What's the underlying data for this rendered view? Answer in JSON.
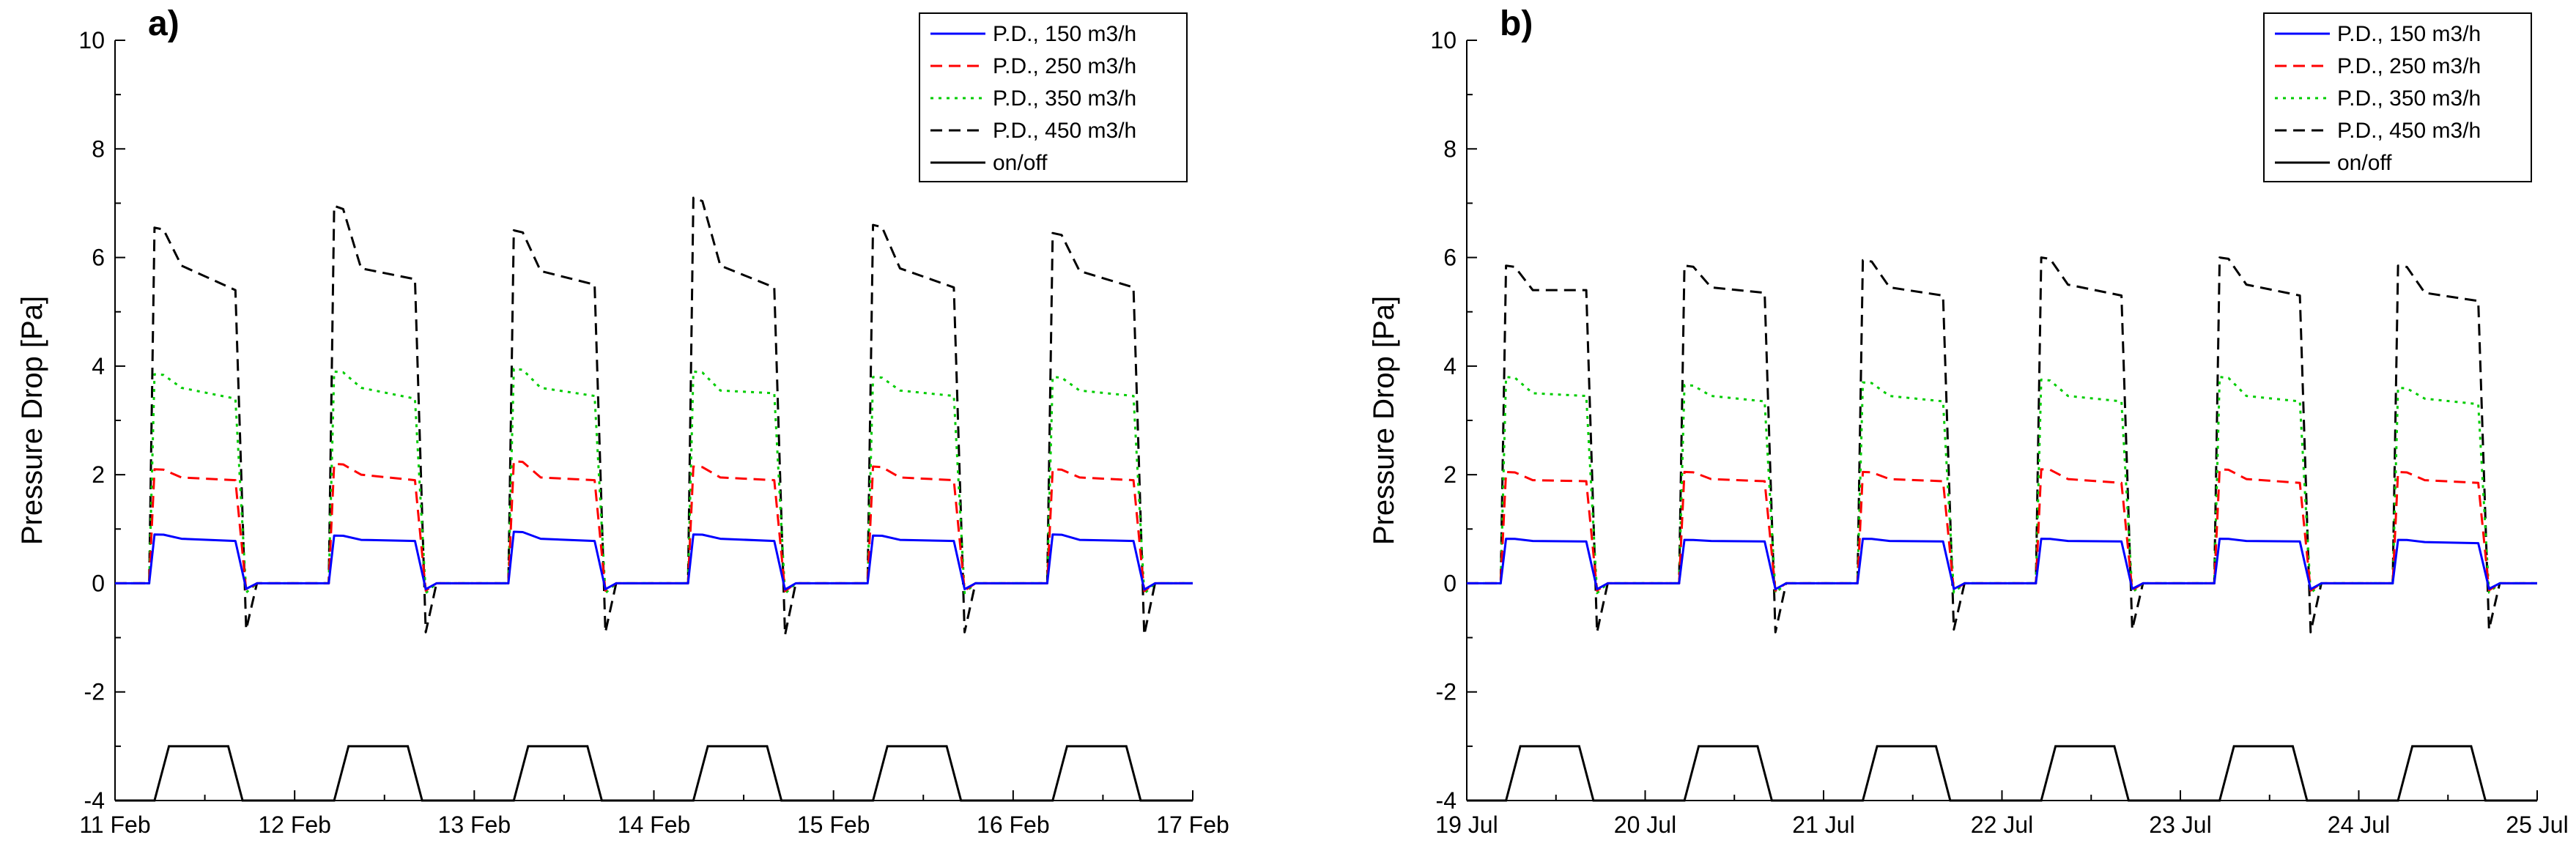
{
  "figure": {
    "panels": [
      {
        "letter": "a)",
        "ylabel": "Pressure Drop [Pa]"
      },
      {
        "letter": "b)",
        "ylabel": "Pressure Drop [Pa]"
      }
    ],
    "legend": [
      {
        "label": "P.D., 150 m3/h",
        "color": "#0000ff",
        "style": "solid"
      },
      {
        "label": "P.D., 250 m3/h",
        "color": "#ff0000",
        "style": "dashed"
      },
      {
        "label": "P.D., 350 m3/h",
        "color": "#00cc00",
        "style": "dotted"
      },
      {
        "label": "P.D., 450 m3/h",
        "color": "#000000",
        "style": "dashed"
      },
      {
        "label": "on/off",
        "color": "#000000",
        "style": "solid"
      }
    ]
  },
  "chart_data": [
    {
      "type": "line",
      "title": "a)",
      "xlabel": "",
      "ylabel": "Pressure Drop [Pa]",
      "ylim": [
        -4,
        10
      ],
      "yticks": [
        -4,
        -2,
        0,
        2,
        4,
        6,
        8,
        10
      ],
      "xlim": [
        0,
        6
      ],
      "xtick_labels": [
        "11 Feb",
        "12 Feb",
        "13 Feb",
        "14 Feb",
        "15 Feb",
        "16 Feb",
        "17 Feb"
      ],
      "legend_position": "top-right",
      "on_level": -3,
      "off_level": -4,
      "cycles": [
        {
          "day": 0,
          "on_start": 0.22,
          "on_end": 0.71,
          "p150": [
            0.9,
            0.82,
            0.78
          ],
          "p250": [
            2.1,
            1.95,
            1.9
          ],
          "p350": [
            3.85,
            3.6,
            3.4
          ],
          "p450": [
            6.55,
            5.85,
            5.4
          ],
          "undershoot": -0.85
        },
        {
          "day": 1,
          "on_start": 0.22,
          "on_end": 0.71,
          "p150": [
            0.88,
            0.8,
            0.78
          ],
          "p250": [
            2.2,
            2.0,
            1.9
          ],
          "p350": [
            3.9,
            3.6,
            3.4
          ],
          "p450": [
            6.95,
            5.8,
            5.6
          ],
          "undershoot": -0.9
        },
        {
          "day": 2,
          "on_start": 0.22,
          "on_end": 0.71,
          "p150": [
            0.95,
            0.82,
            0.78
          ],
          "p250": [
            2.25,
            1.95,
            1.9
          ],
          "p350": [
            3.95,
            3.6,
            3.45
          ],
          "p450": [
            6.5,
            5.75,
            5.5
          ],
          "undershoot": -0.9
        },
        {
          "day": 3,
          "on_start": 0.22,
          "on_end": 0.71,
          "p150": [
            0.9,
            0.82,
            0.78
          ],
          "p250": [
            2.15,
            1.95,
            1.9
          ],
          "p350": [
            3.9,
            3.55,
            3.5
          ],
          "p450": [
            7.1,
            5.85,
            5.45
          ],
          "undershoot": -0.95
        },
        {
          "day": 4,
          "on_start": 0.22,
          "on_end": 0.71,
          "p150": [
            0.88,
            0.8,
            0.78
          ],
          "p250": [
            2.15,
            1.95,
            1.9
          ],
          "p350": [
            3.8,
            3.55,
            3.45
          ],
          "p450": [
            6.6,
            5.8,
            5.45
          ],
          "undershoot": -0.9
        },
        {
          "day": 5,
          "on_start": 0.22,
          "on_end": 0.71,
          "p150": [
            0.9,
            0.8,
            0.78
          ],
          "p250": [
            2.1,
            1.95,
            1.9
          ],
          "p350": [
            3.8,
            3.55,
            3.45
          ],
          "p450": [
            6.45,
            5.75,
            5.45
          ],
          "undershoot": -0.95
        }
      ]
    },
    {
      "type": "line",
      "title": "b)",
      "xlabel": "",
      "ylabel": "Pressure Drop [Pa]",
      "ylim": [
        -4,
        10
      ],
      "yticks": [
        -4,
        -2,
        0,
        2,
        4,
        6,
        8,
        10
      ],
      "xlim": [
        0,
        6
      ],
      "xtick_labels": [
        "19 Jul",
        "20 Jul",
        "21 Jul",
        "22 Jul",
        "23 Jul",
        "24 Jul",
        "25 Jul"
      ],
      "legend_position": "top-right",
      "on_level": -3,
      "off_level": -4,
      "cycles": [
        {
          "day": 0,
          "on_start": 0.22,
          "on_end": 0.71,
          "p150": [
            0.82,
            0.78,
            0.77
          ],
          "p250": [
            2.05,
            1.9,
            1.88
          ],
          "p350": [
            3.8,
            3.5,
            3.45
          ],
          "p450": [
            5.85,
            5.4,
            5.4
          ],
          "undershoot": -0.9
        },
        {
          "day": 1,
          "on_start": 0.22,
          "on_end": 0.71,
          "p150": [
            0.8,
            0.78,
            0.77
          ],
          "p250": [
            2.05,
            1.92,
            1.88
          ],
          "p350": [
            3.65,
            3.45,
            3.35
          ],
          "p450": [
            5.85,
            5.45,
            5.35
          ],
          "undershoot": -0.9
        },
        {
          "day": 2,
          "on_start": 0.22,
          "on_end": 0.71,
          "p150": [
            0.82,
            0.78,
            0.77
          ],
          "p250": [
            2.05,
            1.92,
            1.88
          ],
          "p350": [
            3.7,
            3.45,
            3.35
          ],
          "p450": [
            5.95,
            5.45,
            5.3
          ],
          "undershoot": -0.85
        },
        {
          "day": 3,
          "on_start": 0.22,
          "on_end": 0.71,
          "p150": [
            0.82,
            0.78,
            0.77
          ],
          "p250": [
            2.1,
            1.92,
            1.85
          ],
          "p350": [
            3.75,
            3.45,
            3.35
          ],
          "p450": [
            6.0,
            5.5,
            5.3
          ],
          "undershoot": -0.85
        },
        {
          "day": 4,
          "on_start": 0.22,
          "on_end": 0.71,
          "p150": [
            0.82,
            0.78,
            0.77
          ],
          "p250": [
            2.1,
            1.92,
            1.85
          ],
          "p350": [
            3.8,
            3.45,
            3.35
          ],
          "p450": [
            6.0,
            5.5,
            5.3
          ],
          "undershoot": -0.9
        },
        {
          "day": 5,
          "on_start": 0.22,
          "on_end": 0.71,
          "p150": [
            0.8,
            0.76,
            0.74
          ],
          "p250": [
            2.05,
            1.9,
            1.85
          ],
          "p350": [
            3.6,
            3.4,
            3.3
          ],
          "p450": [
            5.85,
            5.35,
            5.2
          ],
          "undershoot": -0.85
        }
      ]
    }
  ]
}
